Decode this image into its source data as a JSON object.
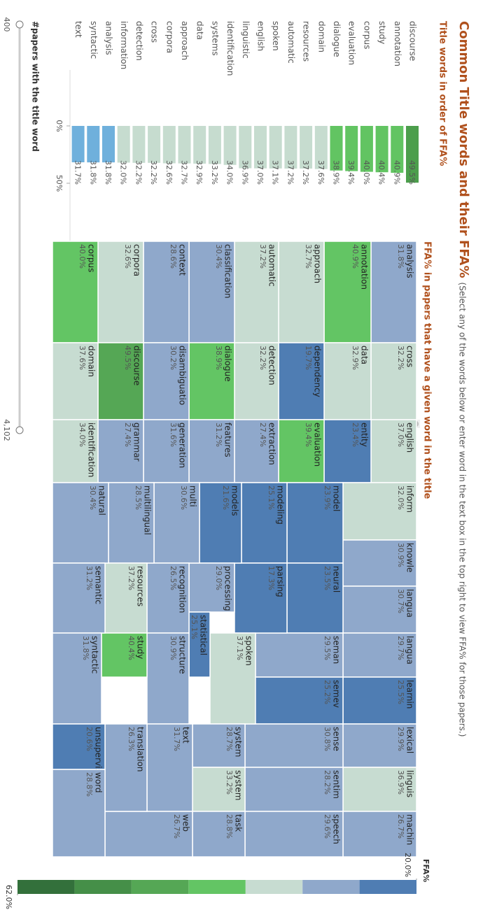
{
  "title": "Common Title words and their FFA%",
  "subtitle": "(Select any of the words below or enter word in the text box in the top right to view FFA% for those papers.)",
  "chart_data": [
    {
      "type": "bar",
      "title": "Title words in order of FFA%",
      "categories": [
        "discourse",
        "annotation",
        "study",
        "corpus",
        "evaluation",
        "dialogue",
        "domain",
        "resources",
        "automatic",
        "spoken",
        "english",
        "linguistic",
        "identification",
        "systems",
        "data",
        "approach",
        "corpora",
        "cross",
        "detection",
        "information",
        "analysis",
        "syntactic",
        "text"
      ],
      "values": [
        49.5,
        40.9,
        40.4,
        40.0,
        39.4,
        38.9,
        37.6,
        37.2,
        37.2,
        37.1,
        37.0,
        36.9,
        34.0,
        33.2,
        32.9,
        32.7,
        32.6,
        32.2,
        32.2,
        32.0,
        31.8,
        31.8,
        31.7
      ],
      "value_labels": [
        "49.5%",
        "40.9%",
        "40.4%",
        "40.0%",
        "39.4%",
        "38.9%",
        "37.6%",
        "37.2%",
        "37.2%",
        "37.1%",
        "37.0%",
        "36.9%",
        "34.0%",
        "33.2%",
        "32.9%",
        "32.7%",
        "32.6%",
        "32.2%",
        "32.2%",
        "32.0%",
        "31.8%",
        "31.8%",
        "31.7%"
      ],
      "xlim": [
        0,
        50
      ],
      "xticks": [
        {
          "value": 0,
          "label": "0%"
        },
        {
          "value": 50,
          "label": "50%"
        }
      ],
      "colors": [
        "#3b7ab8",
        "#6fb0dc",
        "#c6dccf",
        "#62c462",
        "#4c9e4c",
        "#3a853a",
        "#2d6b36"
      ]
    },
    {
      "type": "treemap",
      "title": "FFA% in papers that have a given word in the title",
      "categories": [
        "analysis",
        "annotation",
        "approach",
        "automatic",
        "classification",
        "context",
        "corpora",
        "corpus",
        "cross",
        "data",
        "dependency",
        "detection",
        "dialogue",
        "disambiguatio",
        "discourse",
        "domain",
        "english",
        "entity",
        "evaluation",
        "extraction",
        "features",
        "generation",
        "grammar",
        "identification",
        "inform",
        "knowle",
        "langua",
        "langua",
        "learnin",
        "lexical",
        "linguis",
        "machin",
        "model",
        "neural",
        "seman",
        "semev",
        "sense",
        "sentim",
        "speech",
        "modeling",
        "parsing",
        "spoken",
        "system",
        "system",
        "task",
        "models",
        "processing",
        "statistical",
        "multi",
        "recognition",
        "structure",
        "text",
        "web",
        "multilingual",
        "resources",
        "study",
        "translation",
        "natural",
        "semantic",
        "syntactic",
        "unsupervised",
        "word"
      ],
      "values": [
        31.8,
        40.9,
        32.7,
        37.2,
        30.4,
        28.6,
        32.6,
        40.0,
        32.2,
        32.9,
        19.7,
        32.2,
        38.9,
        30.2,
        49.5,
        37.6,
        37.0,
        23.4,
        39.4,
        27.4,
        31.2,
        31.6,
        27.4,
        34.0,
        32.0,
        30.9,
        30.7,
        29.7,
        25.5,
        29.9,
        36.9,
        26.7,
        23.9,
        23.5,
        29.5,
        25.2,
        30.8,
        28.2,
        29.6,
        25.1,
        17.3,
        37.1,
        28.7,
        33.2,
        28.8,
        21.6,
        29.0,
        25.1,
        30.6,
        26.5,
        30.9,
        31.7,
        26.7,
        28.5,
        37.2,
        40.4,
        26.3,
        30.4,
        31.2,
        31.8,
        20.6,
        28.8
      ],
      "value_labels": [
        "31.8%",
        "40.9%",
        "32.7%",
        "37.2%",
        "30.4%",
        "28.6%",
        "32.6%",
        "40.0%",
        "32.2%",
        "32.9%",
        "19.7%",
        "32.2%",
        "38.9%",
        "30.2%",
        "49.5%",
        "37.6%",
        "37.0%",
        "23.4%",
        "39.4%",
        "27.4%",
        "31.2%",
        "31.6%",
        "27.4%",
        "34.0%",
        "32.0%",
        "30.9%",
        "30.7%",
        "29.7%",
        "25.5%",
        "29.9%",
        "36.9%",
        "26.7%",
        "23.9%",
        "23.5%",
        "29.5%",
        "25.2%",
        "30.8%",
        "28.2%",
        "29.6%",
        "25.1%",
        "17.3%",
        "37.1%",
        "28.7%",
        "33.2%",
        "28.8%",
        "21.6%",
        "29.0%",
        "25.1%",
        "30.6%",
        "26.5%",
        "30.9%",
        "31.7%",
        "26.7%",
        "28.5%",
        "37.2%",
        "40.4%",
        "26.3%",
        "30.4%",
        "31.2%",
        "31.8%",
        "20.6%",
        "28.8%"
      ]
    }
  ],
  "legend": {
    "title": "FFA%",
    "min": {
      "value": 20,
      "label": "20.0%"
    },
    "max": {
      "value": 62,
      "label": "62.0%"
    },
    "colors": [
      "#4f7db3",
      "#8fa8cb",
      "#c7dcd1",
      "#63c564",
      "#55a755",
      "#458f48",
      "#33703b"
    ]
  },
  "slider": {
    "title": "#papers with the title word",
    "min": 400,
    "max": {
      "value": 4102,
      "label": "4,102"
    }
  }
}
